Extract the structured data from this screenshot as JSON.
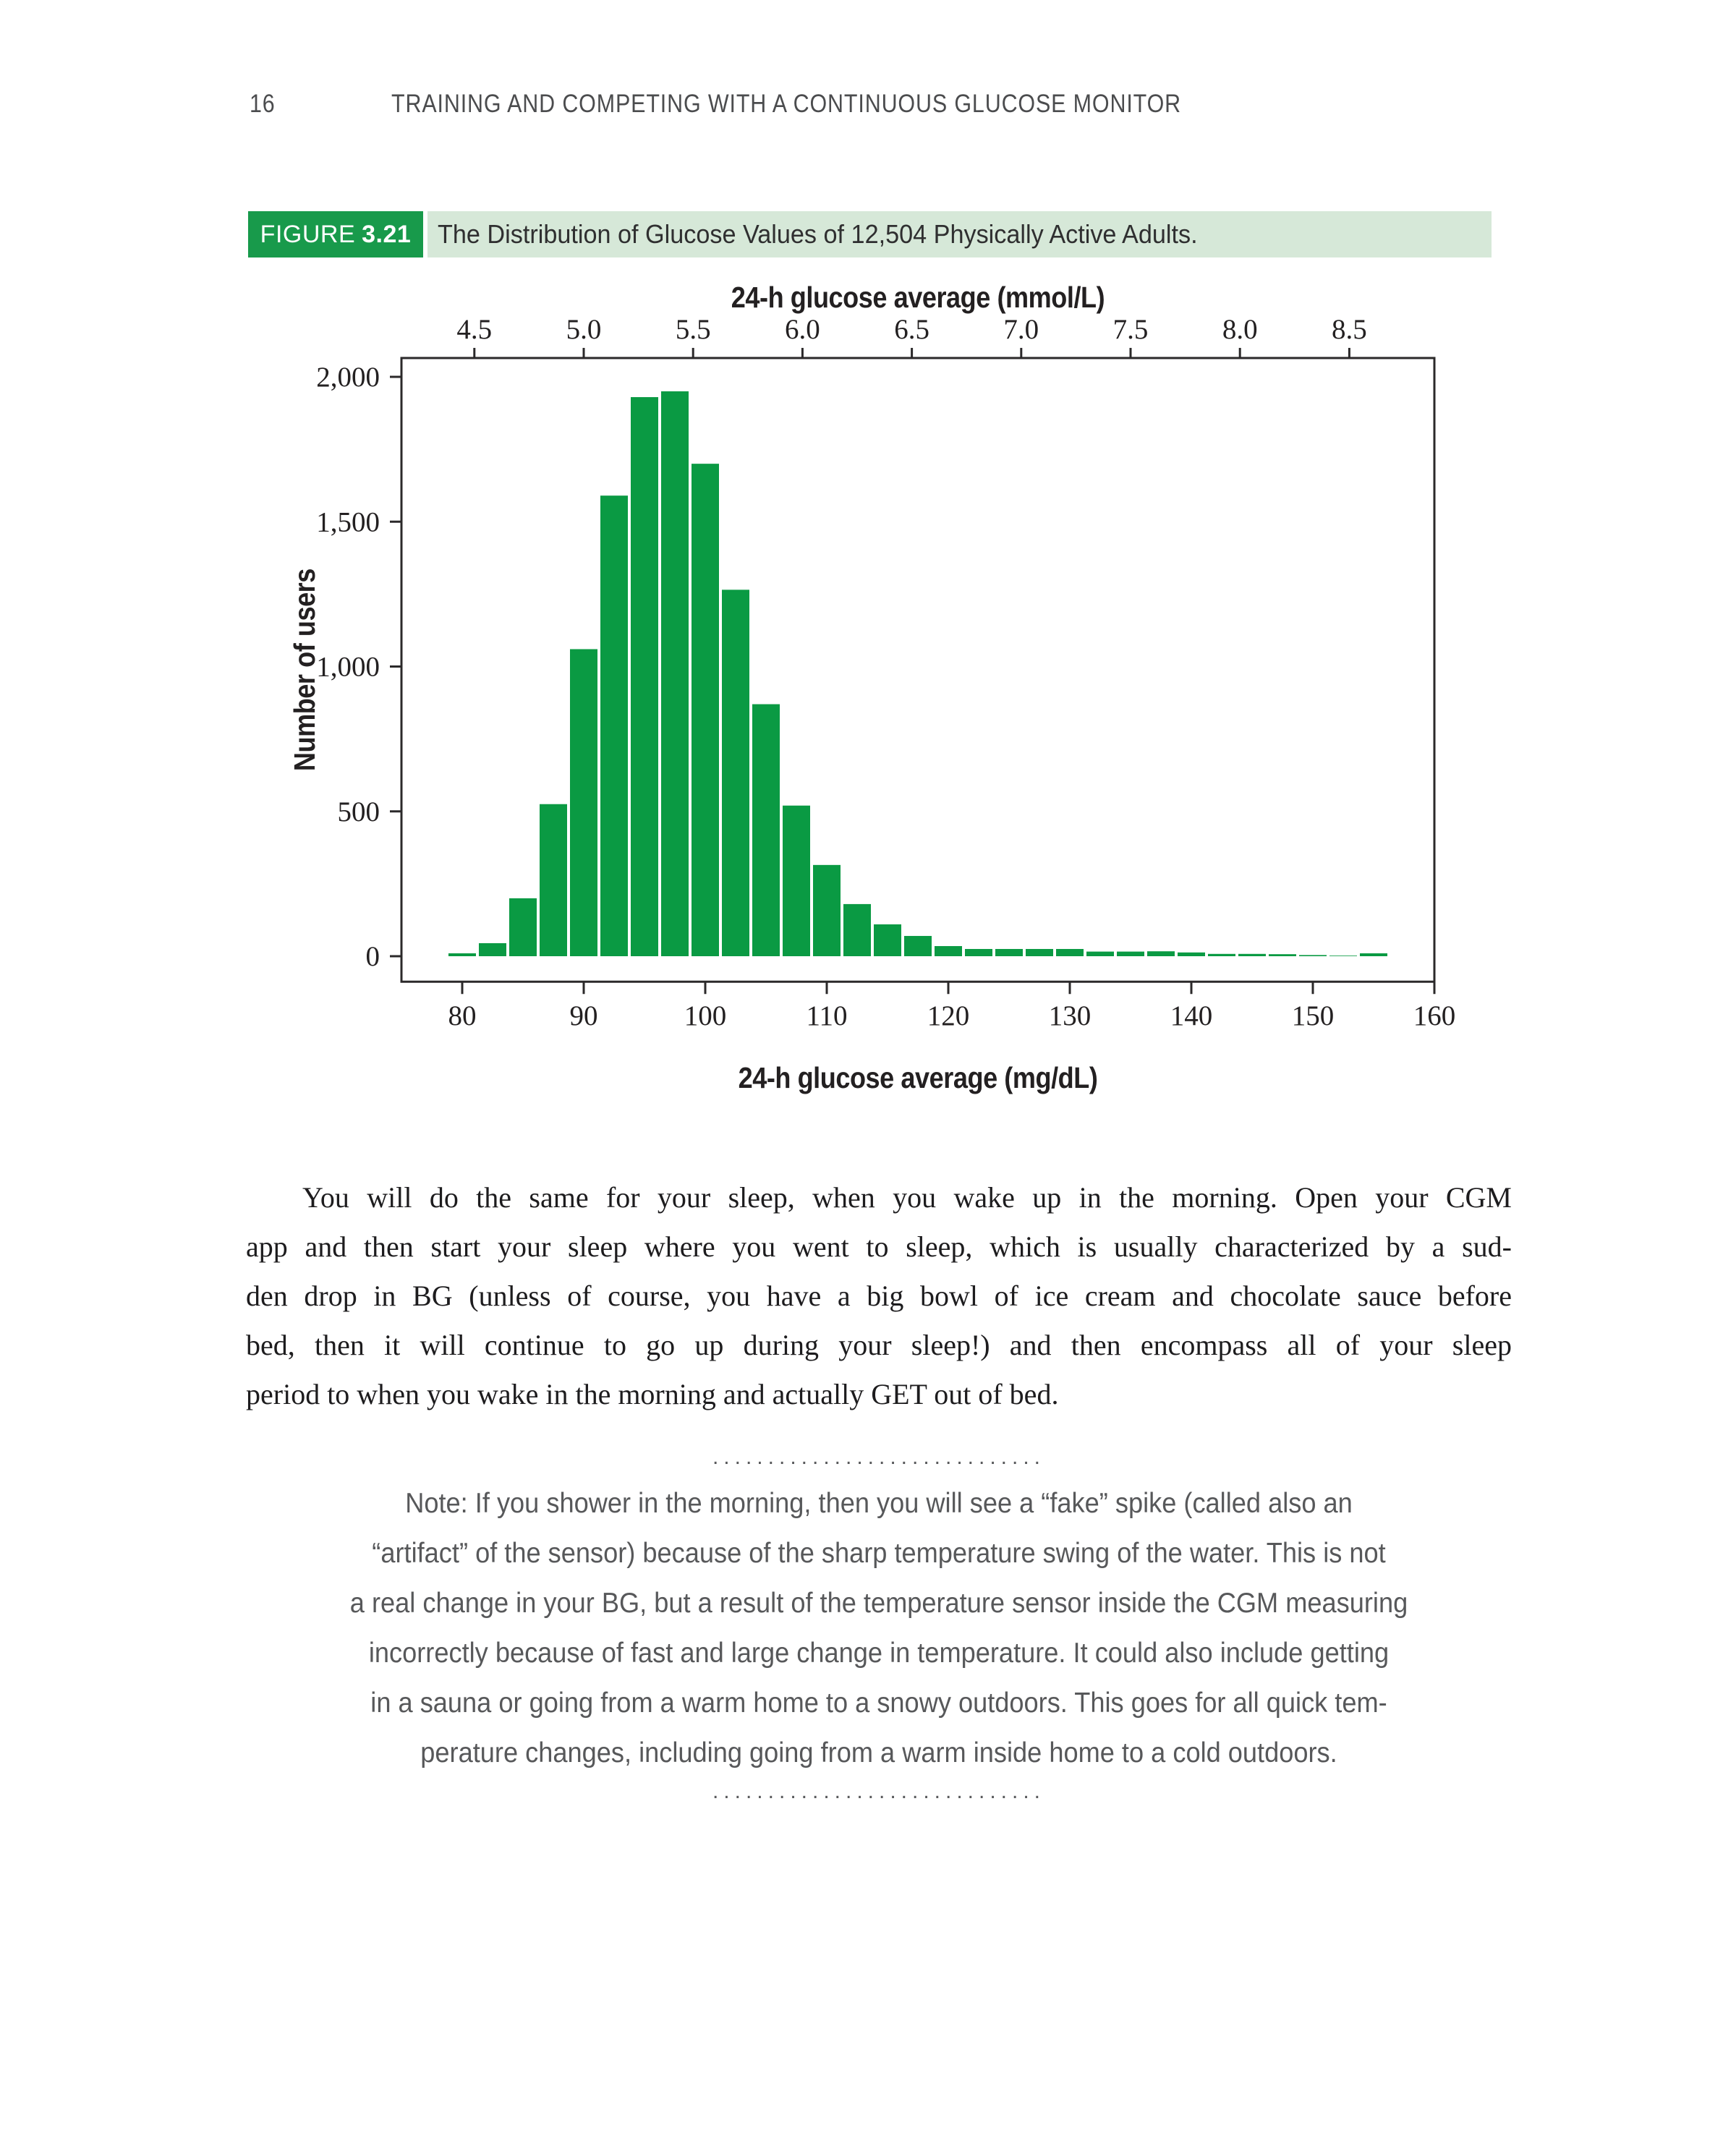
{
  "page": {
    "number": "16",
    "running_head": "TRAINING AND COMPETING WITH A CONTINUOUS GLUCOSE MONITOR"
  },
  "colors": {
    "figure_green": "#189a4b",
    "figure_light": "#d6e8d8",
    "bar_green": "#0a9a43",
    "note_gray": "#57585a"
  },
  "figure": {
    "label_prefix": "FIGURE",
    "label_number": "3.21",
    "caption": "The Distribution of Glucose Values of 12,504 Physically Active Adults."
  },
  "chart_data": {
    "type": "bar",
    "subtype": "histogram",
    "title": "The Distribution of Glucose Values of 12,504 Physically Active Adults.",
    "top_axis_label": "24-h glucose average (mmol/L)",
    "xlabel": "24-h glucose average (mg/dL)",
    "ylabel": "Number of users",
    "bar_color": "#0a9a43",
    "grid": false,
    "legend": false,
    "bins": {
      "start_mgdl": 78.75,
      "width_mgdl": 2.5
    },
    "bin_centers_mgdl": [
      80,
      82.5,
      85,
      87.5,
      90,
      92.5,
      95,
      97.5,
      100,
      102.5,
      105,
      107.5,
      110,
      112.5,
      115,
      117.5,
      120,
      122.5,
      125,
      127.5,
      130,
      132.5,
      135,
      137.5,
      140,
      142.5,
      145,
      147.5,
      150,
      152.5,
      155
    ],
    "values": [
      10,
      45,
      200,
      525,
      1060,
      1590,
      1930,
      1950,
      1700,
      1265,
      870,
      520,
      315,
      180,
      110,
      70,
      35,
      25,
      25,
      25,
      25,
      16,
      16,
      17,
      13,
      8,
      8,
      7,
      4,
      2,
      10
    ],
    "x_ticks_mgdl": [
      80,
      90,
      100,
      110,
      120,
      130,
      140,
      150,
      160
    ],
    "x_ticks_mmol": [
      "4.5",
      "5.0",
      "5.5",
      "6.0",
      "6.5",
      "7.0",
      "7.5",
      "8.0",
      "8.5"
    ],
    "mmol_to_mgdl": 18,
    "y_tick_values": [
      0,
      500,
      1000,
      1500,
      2000
    ],
    "y_ticks": [
      "0",
      "500",
      "1,000",
      "1,500",
      "2,000"
    ],
    "xlim_mgdl": [
      75,
      160
    ],
    "ylim": [
      -88,
      2065
    ]
  },
  "paragraph": {
    "lines": [
      "You will do the same for your sleep, when you wake up in the morning. Open your CGM",
      "app and then start your sleep where you went to sleep, which is usually characterized by a sud-",
      "den drop in BG (unless of course, you have a big bowl of ice cream and chocolate sauce before",
      "bed, then it will continue to go up during your sleep!) and then encompass all of your sleep",
      "period to when you wake in the morning and actually GET out of bed."
    ]
  },
  "note": {
    "lines": [
      "Note: If you shower in the morning, then you will see a “fake” spike (called also an",
      "“artifact” of the sensor) because of the sharp temperature swing of the water. This is not",
      "a real change in your BG, but a result of the temperature sensor inside the CGM measuring",
      "incorrectly because of fast and large change in temperature. It could also include getting",
      "in a sauna or going from a warm home to a snowy outdoors. This goes for all quick tem-",
      "perature changes, including going from a warm inside home to a cold outdoors."
    ]
  },
  "separator": {
    "dots": ".............................."
  }
}
